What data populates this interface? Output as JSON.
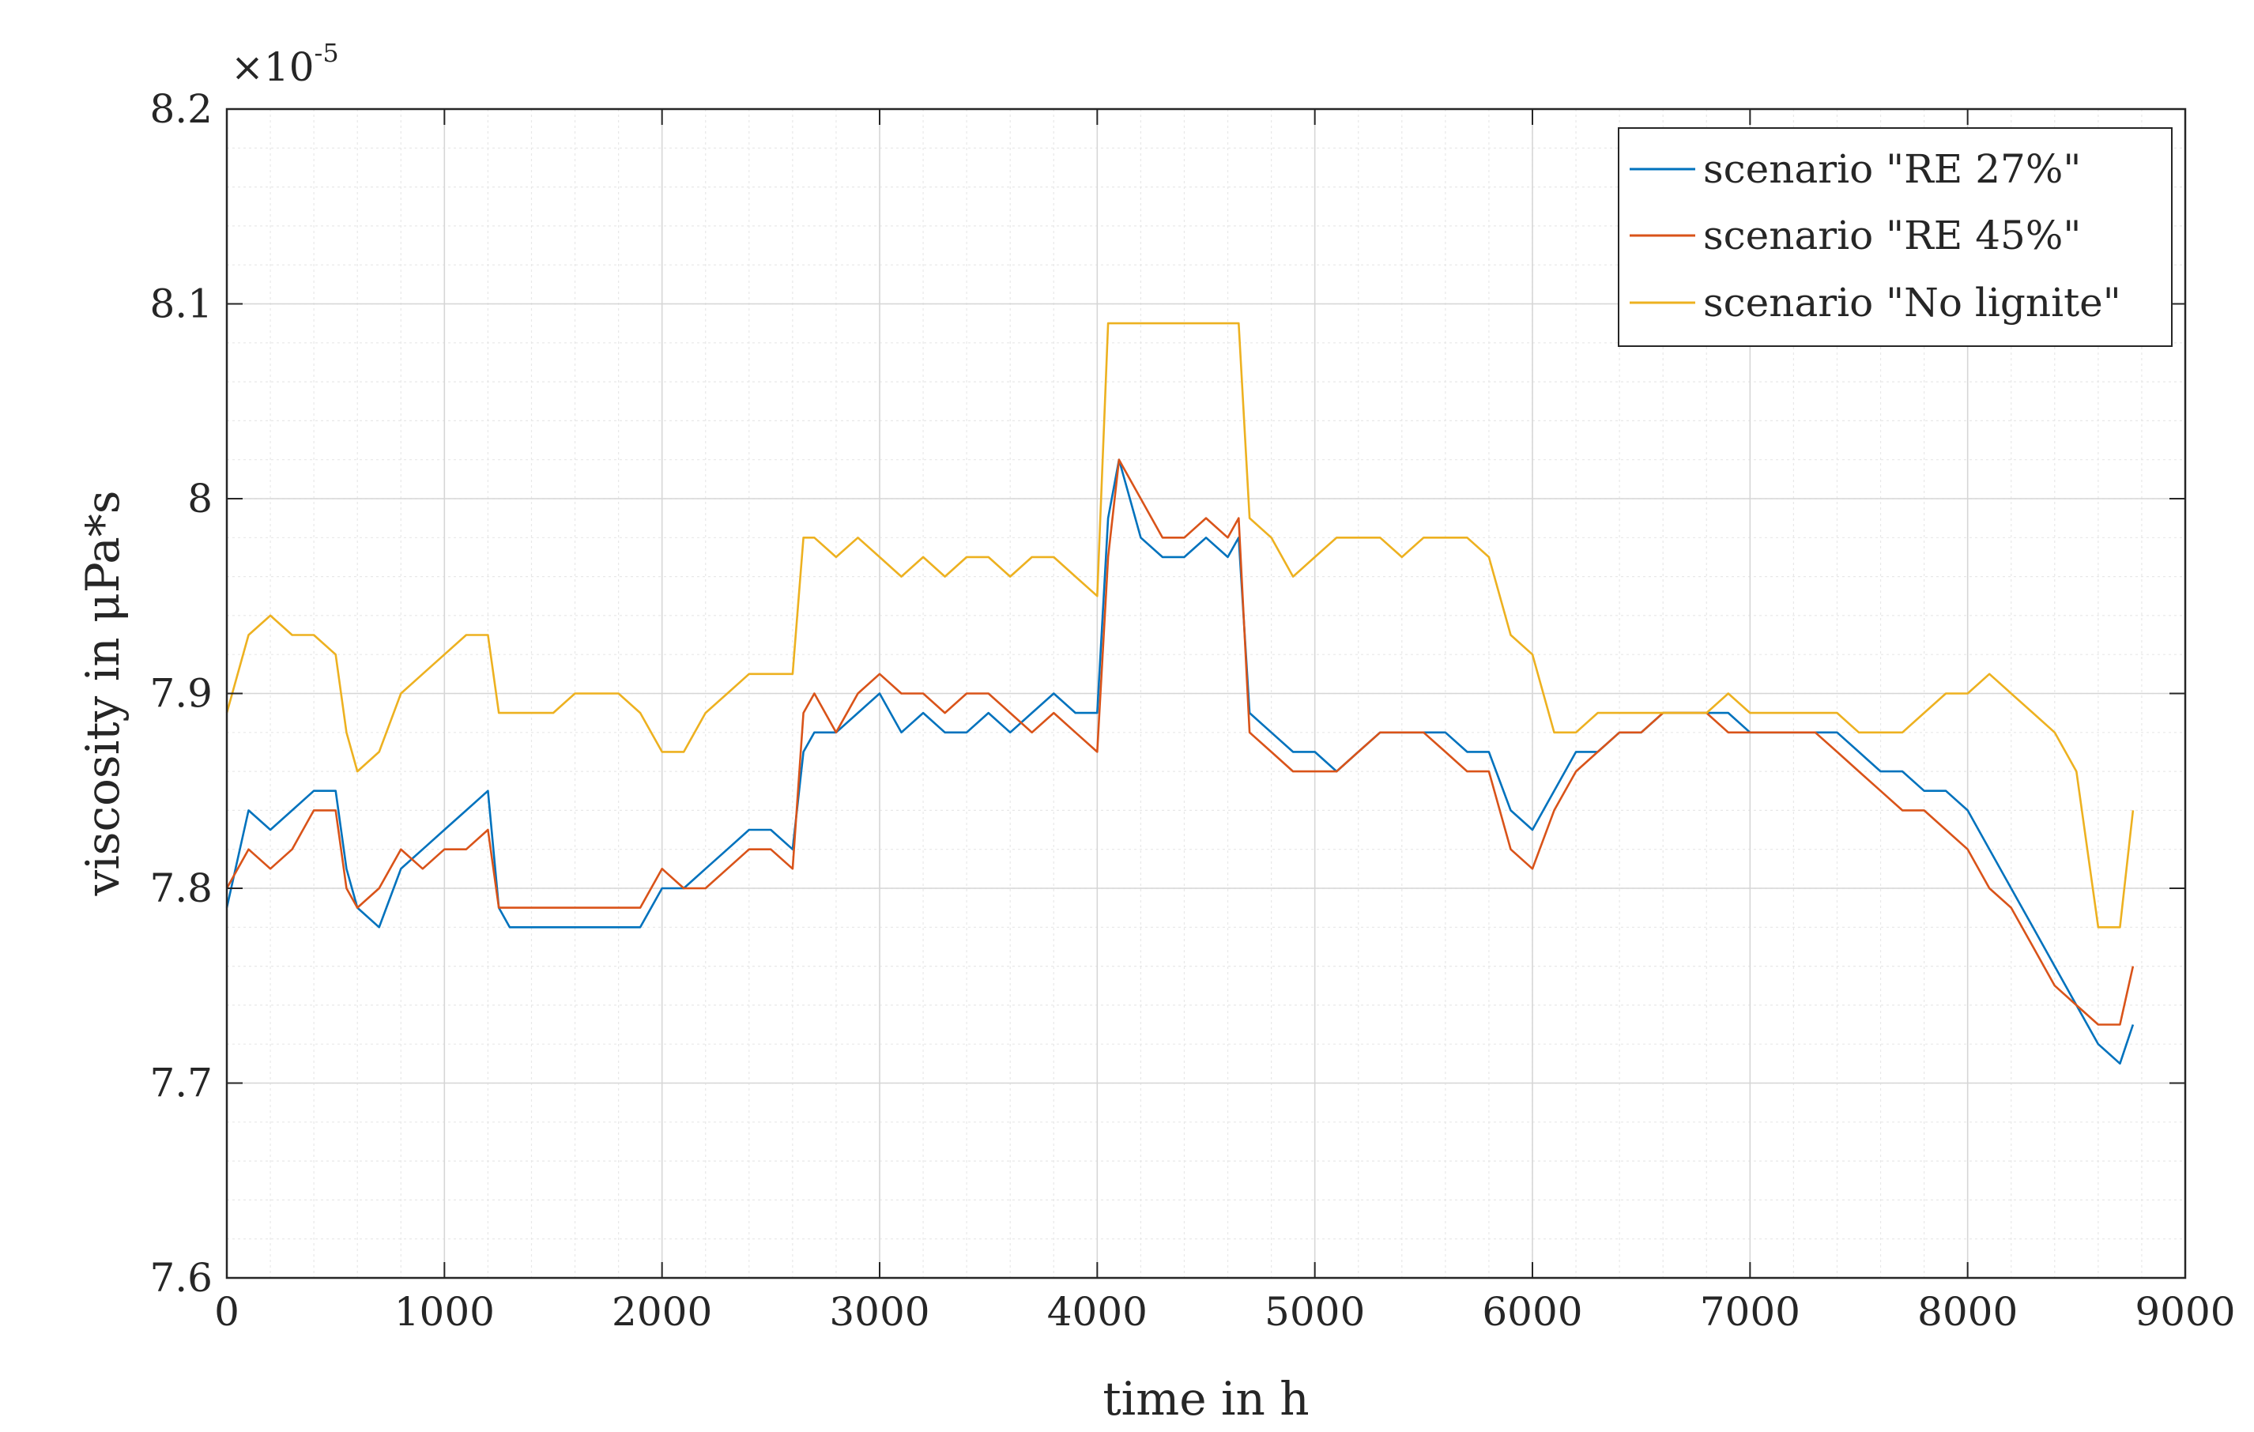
{
  "chart_data": {
    "type": "line",
    "title": "",
    "xlabel": "time in h",
    "ylabel": "viscosity in μPa*s",
    "y_exponent_prefix": "×10",
    "y_exponent_power": "-5",
    "xlim": [
      0,
      9000
    ],
    "ylim": [
      7.6,
      8.2
    ],
    "x_ticks": [
      0,
      1000,
      2000,
      3000,
      4000,
      5000,
      6000,
      7000,
      8000,
      9000
    ],
    "x_tick_labels": [
      "0",
      "1000",
      "2000",
      "3000",
      "4000",
      "5000",
      "6000",
      "7000",
      "8000",
      "9000"
    ],
    "y_ticks": [
      7.6,
      7.7,
      7.8,
      7.9,
      8.0,
      8.1,
      8.2
    ],
    "y_tick_labels": [
      "7.6",
      "7.7",
      "7.8",
      "7.9",
      "8",
      "8.1",
      "8.2"
    ],
    "grid": true,
    "minor_grid": true,
    "legend_position": "top-right",
    "series": [
      {
        "name": "scenario \"RE 27%\"",
        "color": "#0072BD",
        "x": [
          0,
          100,
          200,
          300,
          400,
          500,
          550,
          600,
          700,
          800,
          900,
          1000,
          1100,
          1200,
          1250,
          1300,
          1400,
          1500,
          1600,
          1700,
          1800,
          1900,
          2000,
          2100,
          2200,
          2300,
          2400,
          2500,
          2600,
          2650,
          2700,
          2800,
          2900,
          3000,
          3100,
          3200,
          3300,
          3400,
          3500,
          3600,
          3700,
          3800,
          3900,
          4000,
          4050,
          4100,
          4200,
          4300,
          4400,
          4500,
          4600,
          4650,
          4700,
          4800,
          4900,
          5000,
          5100,
          5200,
          5300,
          5400,
          5500,
          5600,
          5700,
          5800,
          5900,
          6000,
          6100,
          6200,
          6300,
          6400,
          6500,
          6600,
          6700,
          6800,
          6900,
          7000,
          7100,
          7200,
          7300,
          7400,
          7500,
          7600,
          7700,
          7800,
          7900,
          8000,
          8100,
          8200,
          8300,
          8400,
          8500,
          8600,
          8700,
          8760
        ],
        "y": [
          7.79,
          7.84,
          7.83,
          7.84,
          7.85,
          7.85,
          7.81,
          7.79,
          7.78,
          7.81,
          7.82,
          7.83,
          7.84,
          7.85,
          7.79,
          7.78,
          7.78,
          7.78,
          7.78,
          7.78,
          7.78,
          7.78,
          7.8,
          7.8,
          7.81,
          7.82,
          7.83,
          7.83,
          7.82,
          7.87,
          7.88,
          7.88,
          7.89,
          7.9,
          7.88,
          7.89,
          7.88,
          7.88,
          7.89,
          7.88,
          7.89,
          7.9,
          7.89,
          7.89,
          7.99,
          8.02,
          7.98,
          7.97,
          7.97,
          7.98,
          7.97,
          7.98,
          7.89,
          7.88,
          7.87,
          7.87,
          7.86,
          7.87,
          7.88,
          7.88,
          7.88,
          7.88,
          7.87,
          7.87,
          7.84,
          7.83,
          7.85,
          7.87,
          7.87,
          7.88,
          7.88,
          7.89,
          7.89,
          7.89,
          7.89,
          7.88,
          7.88,
          7.88,
          7.88,
          7.88,
          7.87,
          7.86,
          7.86,
          7.85,
          7.85,
          7.84,
          7.82,
          7.8,
          7.78,
          7.76,
          7.74,
          7.72,
          7.71,
          7.73
        ]
      },
      {
        "name": "scenario \"RE 45%\"",
        "color": "#D95319",
        "x": [
          0,
          100,
          200,
          300,
          400,
          500,
          550,
          600,
          700,
          800,
          900,
          1000,
          1100,
          1200,
          1250,
          1300,
          1400,
          1500,
          1600,
          1700,
          1800,
          1900,
          2000,
          2100,
          2200,
          2300,
          2400,
          2500,
          2600,
          2650,
          2700,
          2800,
          2900,
          3000,
          3100,
          3200,
          3300,
          3400,
          3500,
          3600,
          3700,
          3800,
          3900,
          4000,
          4050,
          4100,
          4200,
          4300,
          4400,
          4500,
          4600,
          4650,
          4700,
          4800,
          4900,
          5000,
          5100,
          5200,
          5300,
          5400,
          5500,
          5600,
          5700,
          5800,
          5900,
          6000,
          6100,
          6200,
          6300,
          6400,
          6500,
          6600,
          6700,
          6800,
          6900,
          7000,
          7100,
          7200,
          7300,
          7400,
          7500,
          7600,
          7700,
          7800,
          7900,
          8000,
          8100,
          8200,
          8300,
          8400,
          8500,
          8600,
          8700,
          8760
        ],
        "y": [
          7.8,
          7.82,
          7.81,
          7.82,
          7.84,
          7.84,
          7.8,
          7.79,
          7.8,
          7.82,
          7.81,
          7.82,
          7.82,
          7.83,
          7.79,
          7.79,
          7.79,
          7.79,
          7.79,
          7.79,
          7.79,
          7.79,
          7.81,
          7.8,
          7.8,
          7.81,
          7.82,
          7.82,
          7.81,
          7.89,
          7.9,
          7.88,
          7.9,
          7.91,
          7.9,
          7.9,
          7.89,
          7.9,
          7.9,
          7.89,
          7.88,
          7.89,
          7.88,
          7.87,
          7.97,
          8.02,
          8.0,
          7.98,
          7.98,
          7.99,
          7.98,
          7.99,
          7.88,
          7.87,
          7.86,
          7.86,
          7.86,
          7.87,
          7.88,
          7.88,
          7.88,
          7.87,
          7.86,
          7.86,
          7.82,
          7.81,
          7.84,
          7.86,
          7.87,
          7.88,
          7.88,
          7.89,
          7.89,
          7.89,
          7.88,
          7.88,
          7.88,
          7.88,
          7.88,
          7.87,
          7.86,
          7.85,
          7.84,
          7.84,
          7.83,
          7.82,
          7.8,
          7.79,
          7.77,
          7.75,
          7.74,
          7.73,
          7.73,
          7.76
        ]
      },
      {
        "name": "scenario \"No lignite\"",
        "color": "#EDB120",
        "x": [
          0,
          100,
          200,
          300,
          400,
          500,
          550,
          600,
          700,
          800,
          900,
          1000,
          1100,
          1200,
          1250,
          1300,
          1400,
          1500,
          1600,
          1700,
          1800,
          1900,
          2000,
          2100,
          2200,
          2300,
          2400,
          2500,
          2600,
          2650,
          2700,
          2800,
          2900,
          3000,
          3100,
          3200,
          3300,
          3400,
          3500,
          3600,
          3700,
          3800,
          3900,
          4000,
          4050,
          4100,
          4200,
          4300,
          4400,
          4500,
          4600,
          4650,
          4700,
          4800,
          4900,
          5000,
          5100,
          5200,
          5300,
          5400,
          5500,
          5600,
          5700,
          5800,
          5900,
          6000,
          6100,
          6200,
          6300,
          6400,
          6500,
          6600,
          6700,
          6800,
          6900,
          7000,
          7100,
          7200,
          7300,
          7400,
          7500,
          7600,
          7700,
          7800,
          7900,
          8000,
          8100,
          8200,
          8300,
          8400,
          8500,
          8600,
          8700,
          8760
        ],
        "y": [
          7.89,
          7.93,
          7.94,
          7.93,
          7.93,
          7.92,
          7.88,
          7.86,
          7.87,
          7.9,
          7.91,
          7.92,
          7.93,
          7.93,
          7.89,
          7.89,
          7.89,
          7.89,
          7.9,
          7.9,
          7.9,
          7.89,
          7.87,
          7.87,
          7.89,
          7.9,
          7.91,
          7.91,
          7.91,
          7.98,
          7.98,
          7.97,
          7.98,
          7.97,
          7.96,
          7.97,
          7.96,
          7.97,
          7.97,
          7.96,
          7.97,
          7.97,
          7.96,
          7.95,
          8.09,
          8.09,
          8.09,
          8.09,
          8.09,
          8.09,
          8.09,
          8.09,
          7.99,
          7.98,
          7.96,
          7.97,
          7.98,
          7.98,
          7.98,
          7.97,
          7.98,
          7.98,
          7.98,
          7.97,
          7.93,
          7.92,
          7.88,
          7.88,
          7.89,
          7.89,
          7.89,
          7.89,
          7.89,
          7.89,
          7.9,
          7.89,
          7.89,
          7.89,
          7.89,
          7.89,
          7.88,
          7.88,
          7.88,
          7.89,
          7.9,
          7.9,
          7.91,
          7.9,
          7.89,
          7.88,
          7.86,
          7.78,
          7.78,
          7.84
        ]
      }
    ]
  }
}
